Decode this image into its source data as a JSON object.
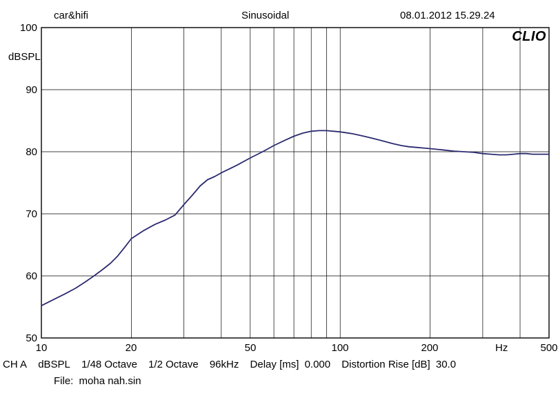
{
  "header": {
    "left": "car&hifi",
    "center": "Sinusoidal",
    "right": "08.01.2012 15.29.24"
  },
  "brand": "CLIO",
  "chart": {
    "type": "line",
    "x_axis": {
      "scale": "log",
      "min": 10,
      "max": 500,
      "ticks_labeled": [
        10,
        20,
        50,
        100,
        200,
        500
      ],
      "minor_ticks": [
        10,
        20,
        30,
        40,
        50,
        60,
        70,
        80,
        90,
        100,
        200,
        300,
        400,
        500
      ],
      "unit_label": "Hz"
    },
    "y_axis": {
      "scale": "linear",
      "min": 50.0,
      "max": 100.0,
      "ticks_labeled": [
        50.0,
        60.0,
        70.0,
        80.0,
        90.0,
        100.0
      ],
      "unit_label": "dBSPL"
    },
    "grid": {
      "major_color": "#000000",
      "major_width": 0.7,
      "border_color": "#000000",
      "border_width": 1.4
    },
    "line": {
      "color": "#2a2a70",
      "width": 1.8
    },
    "background_color": "#ffffff",
    "data_points": [
      [
        10,
        55.2
      ],
      [
        11,
        56.2
      ],
      [
        12,
        57.1
      ],
      [
        13,
        58.0
      ],
      [
        14,
        59.0
      ],
      [
        15,
        60.0
      ],
      [
        16,
        61.0
      ],
      [
        17,
        62.0
      ],
      [
        18,
        63.2
      ],
      [
        19,
        64.6
      ],
      [
        20,
        66.0
      ],
      [
        22,
        67.3
      ],
      [
        24,
        68.3
      ],
      [
        26,
        69.0
      ],
      [
        28,
        69.8
      ],
      [
        30,
        71.5
      ],
      [
        32,
        73.0
      ],
      [
        34,
        74.5
      ],
      [
        36,
        75.5
      ],
      [
        38,
        76.0
      ],
      [
        40,
        76.6
      ],
      [
        45,
        77.8
      ],
      [
        50,
        79.0
      ],
      [
        55,
        80.0
      ],
      [
        60,
        81.0
      ],
      [
        65,
        81.8
      ],
      [
        70,
        82.5
      ],
      [
        75,
        83.0
      ],
      [
        80,
        83.3
      ],
      [
        85,
        83.4
      ],
      [
        90,
        83.4
      ],
      [
        95,
        83.3
      ],
      [
        100,
        83.2
      ],
      [
        110,
        82.9
      ],
      [
        120,
        82.5
      ],
      [
        130,
        82.1
      ],
      [
        140,
        81.7
      ],
      [
        150,
        81.3
      ],
      [
        160,
        81.0
      ],
      [
        170,
        80.8
      ],
      [
        180,
        80.7
      ],
      [
        190,
        80.6
      ],
      [
        200,
        80.5
      ],
      [
        220,
        80.3
      ],
      [
        240,
        80.1
      ],
      [
        260,
        80.0
      ],
      [
        280,
        79.9
      ],
      [
        300,
        79.7
      ],
      [
        320,
        79.6
      ],
      [
        340,
        79.5
      ],
      [
        360,
        79.5
      ],
      [
        380,
        79.6
      ],
      [
        400,
        79.7
      ],
      [
        420,
        79.7
      ],
      [
        440,
        79.6
      ],
      [
        460,
        79.6
      ],
      [
        480,
        79.6
      ],
      [
        500,
        79.6
      ]
    ]
  },
  "footer": {
    "line1_segments": {
      "ch": "CH A",
      "unit": "dBSPL",
      "res1": "1/48 Octave",
      "res2": "1/2 Octave",
      "srate": "96kHz",
      "delay_label": "Delay [ms]",
      "delay_val": "0.000",
      "dist_label": "Distortion Rise [dB]",
      "dist_val": "30.0"
    },
    "line2_label": "File:",
    "line2_value": "moha nah.sin"
  }
}
